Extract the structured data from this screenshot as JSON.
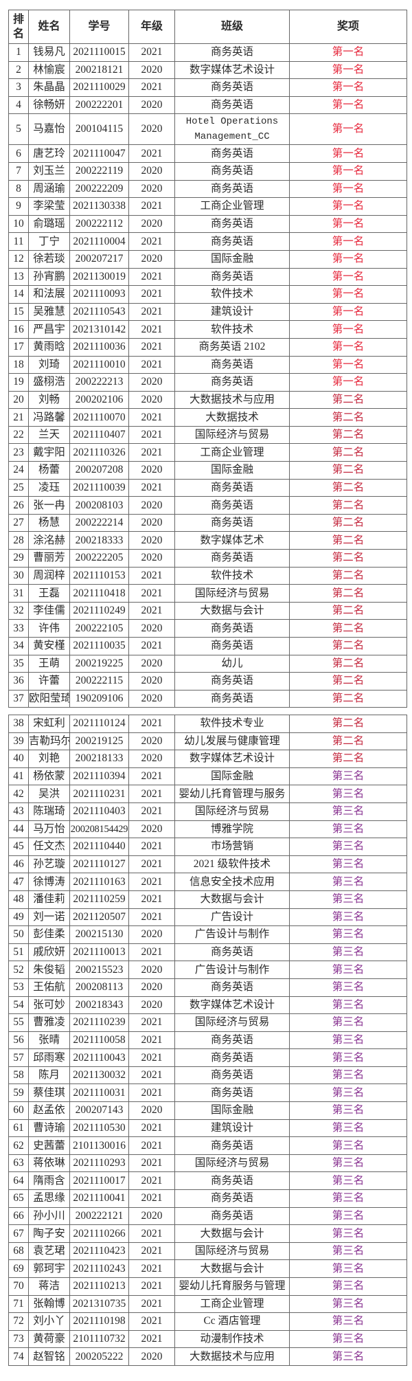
{
  "header": {
    "rank": "排名",
    "name": "姓名",
    "student_id": "学号",
    "grade": "年级",
    "class": "班级",
    "award": "奖项"
  },
  "colors": {
    "第一名": "#e62a3e",
    "第二名": "#c42a40",
    "第三名": "#8a3592"
  },
  "rows": [
    {
      "rank": "1",
      "name": "钱易凡",
      "id": "2021110015",
      "grade": "2021",
      "class": "商务英语",
      "award": "第一名"
    },
    {
      "rank": "2",
      "name": "林愉宸",
      "id": "200218121",
      "grade": "2020",
      "class": "数字媒体艺术设计",
      "award": "第一名"
    },
    {
      "rank": "3",
      "name": "朱晶晶",
      "id": "2021110029",
      "grade": "2021",
      "class": "商务英语",
      "award": "第一名"
    },
    {
      "rank": "4",
      "name": "徐畅妍",
      "id": "200222201",
      "grade": "2020",
      "class": "商务英语",
      "award": "第一名"
    },
    {
      "rank": "5",
      "name": "马嘉怡",
      "id": "200104115",
      "grade": "2020",
      "class": "Hotel Operations Management_CC",
      "award": "第一名"
    },
    {
      "rank": "6",
      "name": "唐艺玲",
      "id": "2021110047",
      "grade": "2021",
      "class": "商务英语",
      "award": "第一名"
    },
    {
      "rank": "7",
      "name": "刘玉兰",
      "id": "200222119",
      "grade": "2020",
      "class": "商务英语",
      "award": "第一名"
    },
    {
      "rank": "8",
      "name": "周涵瑜",
      "id": "200222209",
      "grade": "2020",
      "class": "商务英语",
      "award": "第一名"
    },
    {
      "rank": "9",
      "name": "李梁莹",
      "id": "2021130338",
      "grade": "2021",
      "class": "工商企业管理",
      "award": "第一名"
    },
    {
      "rank": "10",
      "name": "俞璐瑶",
      "id": "200222112",
      "grade": "2020",
      "class": "商务英语",
      "award": "第一名"
    },
    {
      "rank": "11",
      "name": "丁宁",
      "id": "2021110004",
      "grade": "2021",
      "class": "商务英语",
      "award": "第一名"
    },
    {
      "rank": "12",
      "name": "徐若琰",
      "id": "200207217",
      "grade": "2020",
      "class": "国际金融",
      "award": "第一名"
    },
    {
      "rank": "13",
      "name": "孙宵鹏",
      "id": "2021130019",
      "grade": "2021",
      "class": "商务英语",
      "award": "第一名"
    },
    {
      "rank": "14",
      "name": "和法展",
      "id": "2021110093",
      "grade": "2021",
      "class": "软件技术",
      "award": "第一名"
    },
    {
      "rank": "15",
      "name": "吴雅慧",
      "id": "2021110543",
      "grade": "2021",
      "class": "建筑设计",
      "award": "第一名"
    },
    {
      "rank": "16",
      "name": "严昌宇",
      "id": "2021310142",
      "grade": "2021",
      "class": "软件技术",
      "award": "第一名"
    },
    {
      "rank": "17",
      "name": "黄雨晗",
      "id": "2021110036",
      "grade": "2021",
      "class": "商务英语 2102",
      "award": "第一名"
    },
    {
      "rank": "18",
      "name": "刘琦",
      "id": "2021110010",
      "grade": "2021",
      "class": "商务英语",
      "award": "第一名"
    },
    {
      "rank": "19",
      "name": "盛栩浩",
      "id": "200222213",
      "grade": "2020",
      "class": "商务英语",
      "award": "第一名"
    },
    {
      "rank": "20",
      "name": "刘畅",
      "id": "200202106",
      "grade": "2020",
      "class": "大数据技术与应用",
      "award": "第二名"
    },
    {
      "rank": "21",
      "name": "冯路馨",
      "id": "2021110070",
      "grade": "2021",
      "class": "大数据技术",
      "award": "第二名"
    },
    {
      "rank": "22",
      "name": "兰天",
      "id": "2021110407",
      "grade": "2021",
      "class": "国际经济与贸易",
      "award": "第二名"
    },
    {
      "rank": "23",
      "name": "戴宇阳",
      "id": "2021110326",
      "grade": "2021",
      "class": "工商企业管理",
      "award": "第二名"
    },
    {
      "rank": "24",
      "name": "杨蕾",
      "id": "200207208",
      "grade": "2020",
      "class": "国际金融",
      "award": "第二名"
    },
    {
      "rank": "25",
      "name": "凌珏",
      "id": "2021110039",
      "grade": "2021",
      "class": "商务英语",
      "award": "第二名"
    },
    {
      "rank": "26",
      "name": "张一冉",
      "id": "200208103",
      "grade": "2020",
      "class": "商务英语",
      "award": "第二名"
    },
    {
      "rank": "27",
      "name": "杨慧",
      "id": "200222214",
      "grade": "2020",
      "class": "商务英语",
      "award": "第二名"
    },
    {
      "rank": "28",
      "name": "涂洺赫",
      "id": "200218333",
      "grade": "2020",
      "class": "数字媒体艺术",
      "award": "第二名"
    },
    {
      "rank": "29",
      "name": "曹丽芳",
      "id": "200222205",
      "grade": "2020",
      "class": "商务英语",
      "award": "第二名"
    },
    {
      "rank": "30",
      "name": "周润梓",
      "id": "2021110153",
      "grade": "2021",
      "class": "软件技术",
      "award": "第二名"
    },
    {
      "rank": "31",
      "name": "王磊",
      "id": "2021110418",
      "grade": "2021",
      "class": "国际经济与贸易",
      "award": "第二名"
    },
    {
      "rank": "32",
      "name": "李佳儒",
      "id": "2021110249",
      "grade": "2021",
      "class": "大数据与会计",
      "award": "第二名"
    },
    {
      "rank": "33",
      "name": "许伟",
      "id": "200222105",
      "grade": "2020",
      "class": "商务英语",
      "award": "第二名"
    },
    {
      "rank": "34",
      "name": "黄安槿",
      "id": "2021110035",
      "grade": "2021",
      "class": "商务英语",
      "award": "第二名"
    },
    {
      "rank": "35",
      "name": "王萌",
      "id": "200219225",
      "grade": "2020",
      "class": "幼儿",
      "award": "第二名"
    },
    {
      "rank": "36",
      "name": "许蕾",
      "id": "200222115",
      "grade": "2020",
      "class": "商务英语",
      "award": "第二名"
    },
    {
      "rank": "37",
      "name": "欧阳莹琦",
      "id": "190209106",
      "grade": "2020",
      "class": "商务英语",
      "award": "第二名"
    },
    {
      "rank": "38",
      "name": "宋虹利",
      "id": "2021110124",
      "grade": "2021",
      "class": "软件技术专业",
      "award": "第二名"
    },
    {
      "rank": "39",
      "name": "吉勒玛尔",
      "id": "200219125",
      "grade": "2020",
      "class": "幼儿发展与健康管理",
      "award": "第二名"
    },
    {
      "rank": "40",
      "name": "刘艳",
      "id": "200218133",
      "grade": "2020",
      "class": "数字媒体艺术设计",
      "award": "第二名"
    },
    {
      "rank": "41",
      "name": "杨依蒙",
      "id": "2021110394",
      "grade": "2021",
      "class": "国际金融",
      "award": "第三名"
    },
    {
      "rank": "42",
      "name": "吴洪",
      "id": "2021110231",
      "grade": "2021",
      "class": "婴幼儿托育管理与服务",
      "award": "第三名"
    },
    {
      "rank": "43",
      "name": "陈瑞琦",
      "id": "2021110403",
      "grade": "2021",
      "class": "国际经济与贸易",
      "award": "第三名"
    },
    {
      "rank": "44",
      "name": "马万怡",
      "id": "200208154429",
      "grade": "2020",
      "class": "博雅学院",
      "award": "第三名"
    },
    {
      "rank": "45",
      "name": "任文杰",
      "id": "2021110440",
      "grade": "2021",
      "class": "市场营销",
      "award": "第三名"
    },
    {
      "rank": "46",
      "name": "孙艺璇",
      "id": "2021110127",
      "grade": "2021",
      "class": "2021 级软件技术",
      "award": "第三名"
    },
    {
      "rank": "47",
      "name": "徐博涛",
      "id": "2021110163",
      "grade": "2021",
      "class": "信息安全技术应用",
      "award": "第三名"
    },
    {
      "rank": "48",
      "name": "潘佳莉",
      "id": "2021110259",
      "grade": "2021",
      "class": "大数据与会计",
      "award": "第三名"
    },
    {
      "rank": "49",
      "name": "刘一诺",
      "id": "2021120507",
      "grade": "2021",
      "class": "广告设计",
      "award": "第三名"
    },
    {
      "rank": "50",
      "name": "彭佳柔",
      "id": "200215130",
      "grade": "2020",
      "class": "广告设计与制作",
      "award": "第三名"
    },
    {
      "rank": "51",
      "name": "戚欣妍",
      "id": "2021110013",
      "grade": "2021",
      "class": "商务英语",
      "award": "第三名"
    },
    {
      "rank": "52",
      "name": "朱俊韬",
      "id": "200215523",
      "grade": "2020",
      "class": "广告设计与制作",
      "award": "第三名"
    },
    {
      "rank": "53",
      "name": "王佑航",
      "id": "200208113",
      "grade": "2020",
      "class": "商务英语",
      "award": "第三名"
    },
    {
      "rank": "54",
      "name": "张可妙",
      "id": "200218343",
      "grade": "2020",
      "class": "数字媒体艺术设计",
      "award": "第三名"
    },
    {
      "rank": "55",
      "name": "曹雅凌",
      "id": "2021110239",
      "grade": "2021",
      "class": "国际经济与贸易",
      "award": "第三名"
    },
    {
      "rank": "56",
      "name": "张晴",
      "id": "2021110058",
      "grade": "2021",
      "class": "商务英语",
      "award": "第三名"
    },
    {
      "rank": "57",
      "name": "邱雨寒",
      "id": "2021110043",
      "grade": "2021",
      "class": "商务英语",
      "award": "第三名"
    },
    {
      "rank": "58",
      "name": "陈月",
      "id": "2021130032",
      "grade": "2021",
      "class": "商务英语",
      "award": "第三名"
    },
    {
      "rank": "59",
      "name": "蔡佳琪",
      "id": "2021110031",
      "grade": "2021",
      "class": "商务英语",
      "award": "第三名"
    },
    {
      "rank": "60",
      "name": "赵孟依",
      "id": "200207143",
      "grade": "2020",
      "class": "国际金融",
      "award": "第三名"
    },
    {
      "rank": "61",
      "name": "曹诗瑜",
      "id": "2021110530",
      "grade": "2021",
      "class": "建筑设计",
      "award": "第三名"
    },
    {
      "rank": "62",
      "name": "史茜蕾",
      "id": "2101130016",
      "grade": "2021",
      "class": "商务英语",
      "award": "第三名"
    },
    {
      "rank": "63",
      "name": "蒋依琳",
      "id": "2021110293",
      "grade": "2021",
      "class": "国际经济与贸易",
      "award": "第三名"
    },
    {
      "rank": "64",
      "name": "隋雨含",
      "id": "2021110017",
      "grade": "2021",
      "class": "商务英语",
      "award": "第三名"
    },
    {
      "rank": "65",
      "name": "孟思缘",
      "id": "2021110041",
      "grade": "2021",
      "class": "商务英语",
      "award": "第三名"
    },
    {
      "rank": "66",
      "name": "孙小川",
      "id": "200222121",
      "grade": "2020",
      "class": "商务英语",
      "award": "第三名"
    },
    {
      "rank": "67",
      "name": "陶子安",
      "id": "2021110266",
      "grade": "2021",
      "class": "大数据与会计",
      "award": "第三名"
    },
    {
      "rank": "68",
      "name": "袁艺珺",
      "id": "2021110423",
      "grade": "2021",
      "class": "国际经济与贸易",
      "award": "第三名"
    },
    {
      "rank": "69",
      "name": "郭珂宇",
      "id": "2021110243",
      "grade": "2021",
      "class": "大数据与会计",
      "award": "第三名"
    },
    {
      "rank": "70",
      "name": "蒋洁",
      "id": "2021110213",
      "grade": "2021",
      "class": "婴幼儿托育服务与管理",
      "award": "第三名"
    },
    {
      "rank": "71",
      "name": "张翰博",
      "id": "2021310735",
      "grade": "2021",
      "class": "工商企业管理",
      "award": "第三名"
    },
    {
      "rank": "72",
      "name": "刘小丫",
      "id": "2021110198",
      "grade": "2021",
      "class": "Cc 酒店管理",
      "award": "第三名"
    },
    {
      "rank": "73",
      "name": "黄荷豪",
      "id": "2101110732",
      "grade": "2021",
      "class": "动漫制作技术",
      "award": "第三名"
    },
    {
      "rank": "74",
      "name": "赵智铭",
      "id": "200205222",
      "grade": "2020",
      "class": "大数据技术与应用",
      "award": "第三名"
    }
  ]
}
